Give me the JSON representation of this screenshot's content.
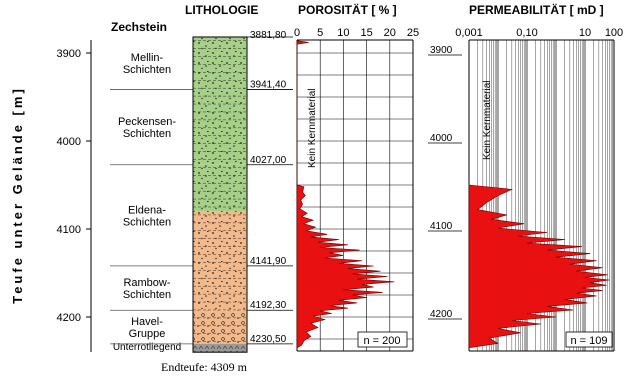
{
  "chart_data": {
    "type": "well-log",
    "y_axis": {
      "label": "Teufe unter Gelände [m]",
      "ticks": [
        3900,
        4000,
        4100,
        4200
      ],
      "range": [
        3870,
        4240
      ],
      "inverted": true
    },
    "top_label": "Zechstein",
    "panels": [
      {
        "id": "lithologie",
        "title": "LITHOLOGIE",
        "units": [
          {
            "name_lines": [
              "Mellin-",
              "Schichten"
            ],
            "top": 3881.8,
            "bottom": 3941.4,
            "lithology": "sandstone",
            "color": "#a6cf88"
          },
          {
            "name_lines": [
              "Peckensen-",
              "Schichten"
            ],
            "top": 3941.4,
            "bottom": 4027.0,
            "lithology": "sandstone",
            "color": "#a6cf88"
          },
          {
            "name_lines": [
              "Eldena-",
              "Schichten"
            ],
            "top": 4027.0,
            "bottom": 4080.0,
            "lithology": "sandstone",
            "color": "#a6cf88"
          },
          {
            "name_lines": [
              "Eldena-",
              "Schichten"
            ],
            "top": 4080.0,
            "bottom": 4141.9,
            "lithology": "sandstone",
            "color": "#f3b98a"
          },
          {
            "name_lines": [
              "Rambow-",
              "Schichten"
            ],
            "top": 4141.9,
            "bottom": 4192.3,
            "lithology": "sandstone",
            "color": "#f3b98a"
          },
          {
            "name_lines": [
              "Havel-",
              "Gruppe"
            ],
            "top": 4192.3,
            "bottom": 4230.5,
            "lithology": "sandstone-conglomerate",
            "color": "#f3b98a"
          },
          {
            "name_lines": [
              "Unterrotliegend"
            ],
            "top": 4230.5,
            "bottom": 4240.0,
            "lithology": "volcanic",
            "color": "#9a9a9a"
          }
        ],
        "boundary_labels": [
          "3881,80",
          "3941,40",
          "4027,00",
          "4141,90",
          "4192,30",
          "4230,50"
        ]
      },
      {
        "id": "porositaet",
        "title": "POROSITÄT [ % ]",
        "x_ticks": [
          "0",
          "5",
          "10",
          "15",
          "20",
          "25"
        ],
        "x_range": [
          0,
          25
        ],
        "annotation": "Kein Kernmaterial",
        "n_label": "n = 200",
        "fill_color": "#e81010",
        "profile": [
          [
            3886,
            0
          ],
          [
            3888,
            2.5
          ],
          [
            3890,
            0
          ],
          [
            4050,
            0
          ],
          [
            4052,
            1.5
          ],
          [
            4058,
            1.2
          ],
          [
            4062,
            1.8
          ],
          [
            4067,
            0.8
          ],
          [
            4072,
            1.2
          ],
          [
            4077,
            0.6
          ],
          [
            4082,
            2.2
          ],
          [
            4086,
            1.0
          ],
          [
            4090,
            3.5
          ],
          [
            4094,
            1.4
          ],
          [
            4098,
            4.0
          ],
          [
            4102,
            2.0
          ],
          [
            4106,
            6.5
          ],
          [
            4109,
            3.0
          ],
          [
            4112,
            9.0
          ],
          [
            4115,
            4.5
          ],
          [
            4118,
            11.0
          ],
          [
            4121,
            5.0
          ],
          [
            4124,
            13.5
          ],
          [
            4127,
            7.0
          ],
          [
            4130,
            10.0
          ],
          [
            4133,
            6.0
          ],
          [
            4136,
            14.0
          ],
          [
            4139,
            9.0
          ],
          [
            4142,
            16.5
          ],
          [
            4145,
            11.0
          ],
          [
            4148,
            18.0
          ],
          [
            4151,
            12.0
          ],
          [
            4154,
            19.5
          ],
          [
            4157,
            13.0
          ],
          [
            4160,
            21.0
          ],
          [
            4163,
            14.0
          ],
          [
            4166,
            16.5
          ],
          [
            4169,
            10.0
          ],
          [
            4172,
            18.5
          ],
          [
            4175,
            12.0
          ],
          [
            4178,
            15.0
          ],
          [
            4181,
            9.0
          ],
          [
            4184,
            13.0
          ],
          [
            4187,
            7.0
          ],
          [
            4190,
            11.0
          ],
          [
            4193,
            5.0
          ],
          [
            4196,
            7.5
          ],
          [
            4199,
            3.5
          ],
          [
            4203,
            6.0
          ],
          [
            4207,
            3.0
          ],
          [
            4212,
            4.5
          ],
          [
            4217,
            2.0
          ],
          [
            4222,
            3.0
          ],
          [
            4227,
            1.5
          ],
          [
            4232,
            1.0
          ],
          [
            4235,
            0
          ]
        ]
      },
      {
        "id": "permeabilitaet",
        "title": "PERMEABILITÄT [ mD ]",
        "x_ticks": [
          "0,001",
          "0,10",
          "10",
          "100"
        ],
        "x_scale": "log",
        "x_range": [
          0.001,
          100
        ],
        "depth_ticks": [
          "3900",
          "4000",
          "4100",
          "4200"
        ],
        "annotation": "Kein Kernmaterial",
        "n_label": "n = 109",
        "fill_color": "#e81010",
        "profile": [
          [
            4050,
            0.001
          ],
          [
            4055,
            0.03
          ],
          [
            4062,
            0.01
          ],
          [
            4070,
            0.004
          ],
          [
            4078,
            0.002
          ],
          [
            4084,
            0.02
          ],
          [
            4089,
            0.006
          ],
          [
            4094,
            0.08
          ],
          [
            4099,
            0.01
          ],
          [
            4104,
            0.5
          ],
          [
            4108,
            0.05
          ],
          [
            4112,
            2.0
          ],
          [
            4116,
            0.1
          ],
          [
            4120,
            8.0
          ],
          [
            4124,
            0.5
          ],
          [
            4128,
            15.0
          ],
          [
            4132,
            1.0
          ],
          [
            4136,
            25.0
          ],
          [
            4140,
            3.0
          ],
          [
            4144,
            40.0
          ],
          [
            4148,
            5.0
          ],
          [
            4152,
            60.0
          ],
          [
            4155,
            10.0
          ],
          [
            4158,
            70.0
          ],
          [
            4161,
            15.0
          ],
          [
            4164,
            55.0
          ],
          [
            4167,
            8.0
          ],
          [
            4170,
            40.0
          ],
          [
            4173,
            5.0
          ],
          [
            4176,
            25.0
          ],
          [
            4180,
            2.0
          ],
          [
            4184,
            12.0
          ],
          [
            4188,
            0.5
          ],
          [
            4192,
            4.0
          ],
          [
            4196,
            0.1
          ],
          [
            4200,
            1.0
          ],
          [
            4204,
            0.03
          ],
          [
            4208,
            0.3
          ],
          [
            4213,
            0.01
          ],
          [
            4218,
            0.06
          ],
          [
            4224,
            0.005
          ],
          [
            4230,
            0.01
          ],
          [
            4235,
            0.001
          ]
        ]
      }
    ],
    "footer": "Endteufe: 4309 m"
  }
}
